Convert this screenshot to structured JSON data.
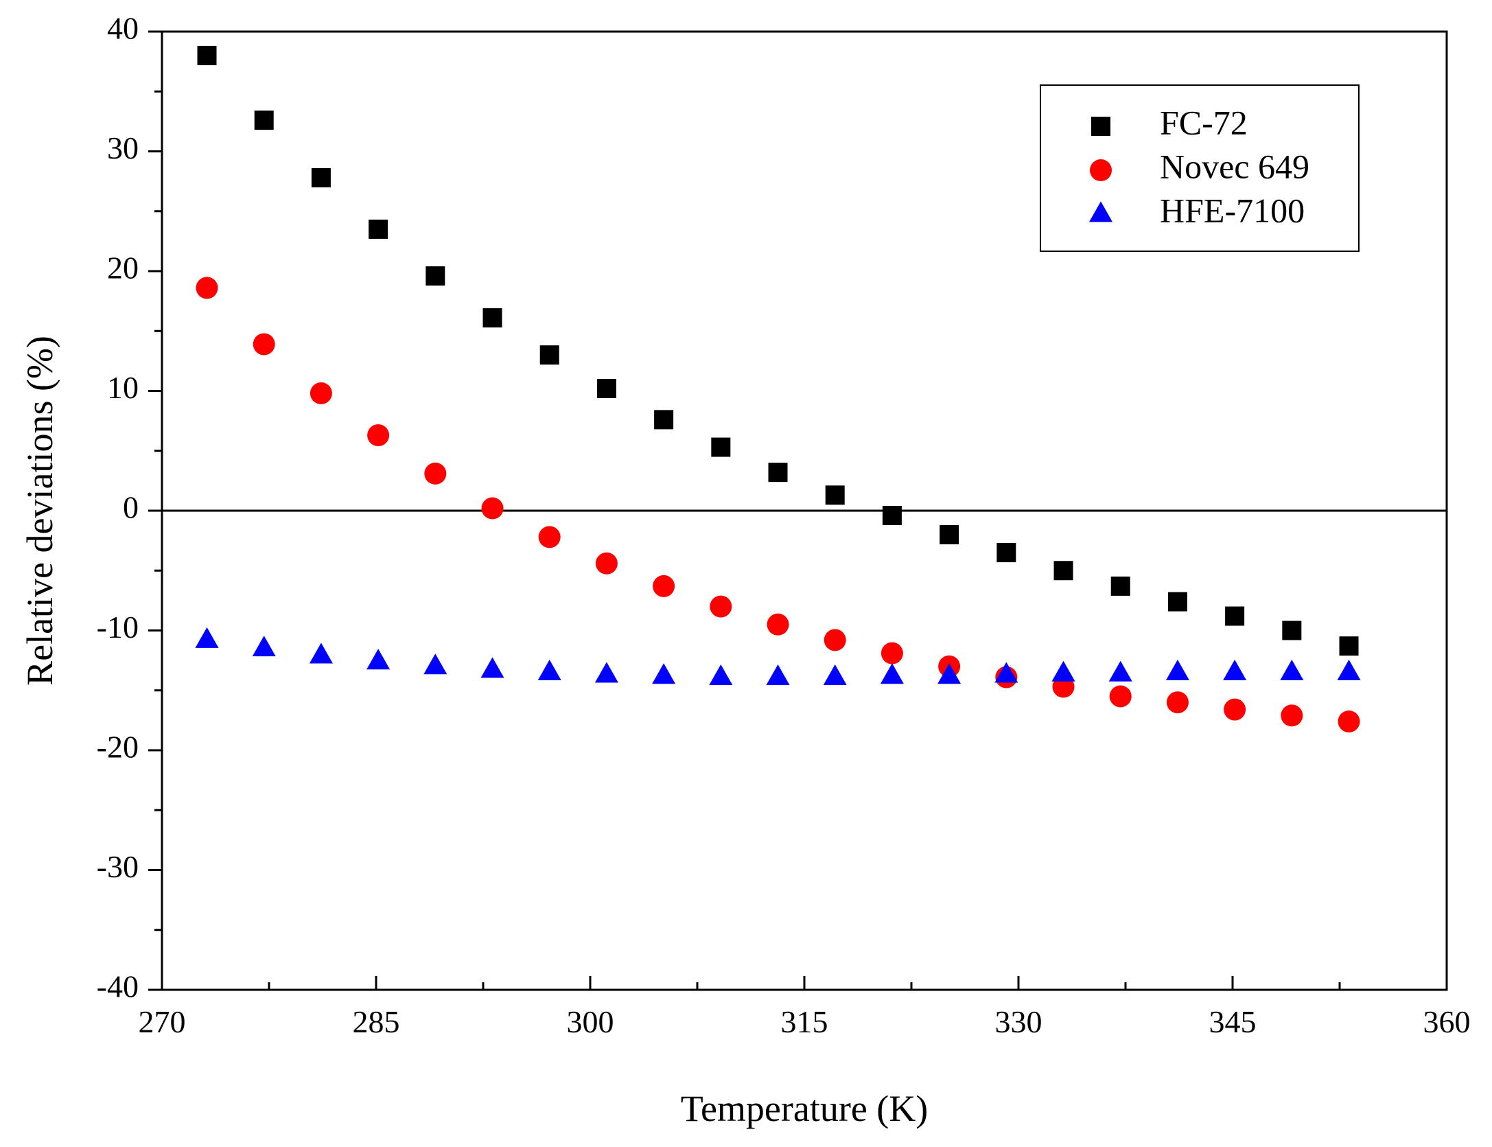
{
  "chart_data": {
    "type": "scatter",
    "title": "",
    "xlabel": "Temperature (K)",
    "ylabel": "Relative deviations (%)",
    "xlim": [
      270,
      360
    ],
    "ylim": [
      -40,
      40
    ],
    "xticks": [
      270,
      285,
      300,
      315,
      330,
      345,
      360
    ],
    "yticks": [
      -40,
      -30,
      -20,
      -10,
      0,
      10,
      20,
      30,
      40
    ],
    "x_tick_labels": [
      "270",
      "285",
      "300",
      "315",
      "330",
      "345",
      "360"
    ],
    "y_tick_labels": [
      "-40",
      "-30",
      "-20",
      "-10",
      "0",
      "10",
      "20",
      "30",
      "40"
    ],
    "zero_line": true,
    "grid": false,
    "legend_position": "top-right",
    "x": [
      273.15,
      277.15,
      281.15,
      285.15,
      289.15,
      293.15,
      297.15,
      301.15,
      305.15,
      309.15,
      313.15,
      317.15,
      321.15,
      325.15,
      329.15,
      333.15,
      337.15,
      341.15,
      345.15,
      349.15,
      353.15
    ],
    "series": [
      {
        "name": "FC-72",
        "marker": "square",
        "color": "#000000",
        "values": [
          38.0,
          32.6,
          27.8,
          23.5,
          19.6,
          16.1,
          13.0,
          10.2,
          7.6,
          5.3,
          3.2,
          1.3,
          -0.4,
          -2.0,
          -3.5,
          -5.0,
          -6.3,
          -7.6,
          -8.8,
          -10.0,
          -11.3
        ]
      },
      {
        "name": "Novec 649",
        "marker": "circle",
        "color": "#ff0000",
        "values": [
          18.6,
          13.9,
          9.8,
          6.3,
          3.1,
          0.2,
          -2.2,
          -4.4,
          -6.3,
          -8.0,
          -9.5,
          -10.8,
          -11.9,
          -13.0,
          -13.9,
          -14.7,
          -15.5,
          -16.0,
          -16.6,
          -17.1,
          -17.6
        ]
      },
      {
        "name": "HFE-7100",
        "marker": "triangle",
        "color": "#0000ff",
        "values": [
          -10.8,
          -11.5,
          -12.1,
          -12.6,
          -13.0,
          -13.3,
          -13.5,
          -13.7,
          -13.8,
          -13.9,
          -13.9,
          -13.9,
          -13.8,
          -13.8,
          -13.7,
          -13.6,
          -13.6,
          -13.5,
          -13.5,
          -13.5,
          -13.5
        ]
      }
    ]
  }
}
